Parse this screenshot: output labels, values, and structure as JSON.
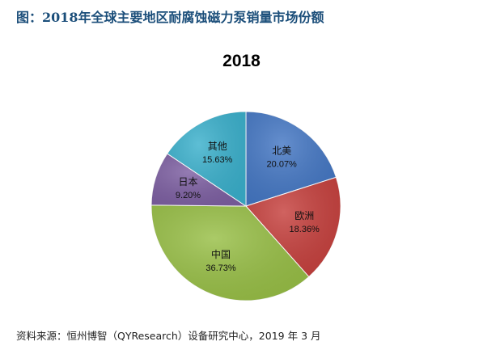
{
  "figure_title": "图：2018年全球主要地区耐腐蚀磁力泵销量市场份额",
  "source_note": "资料来源：恒州博智（QYResearch）设备研究中心，2019 年 3 月",
  "chart_data": {
    "type": "pie",
    "title": "2018",
    "slices": [
      {
        "label": "北美",
        "value": 20.07,
        "display": "20.07%",
        "color": "#4477c4"
      },
      {
        "label": "欧洲",
        "value": 18.36,
        "display": "18.36%",
        "color": "#c6403d"
      },
      {
        "label": "中国",
        "value": 36.73,
        "display": "36.73%",
        "color": "#98bf46"
      },
      {
        "label": "日本",
        "value": 9.2,
        "display": "9.20%",
        "color": "#7d5fa2"
      },
      {
        "label": "其他",
        "value": 15.63,
        "display": "15.63%",
        "color": "#3ab0cc"
      }
    ]
  }
}
